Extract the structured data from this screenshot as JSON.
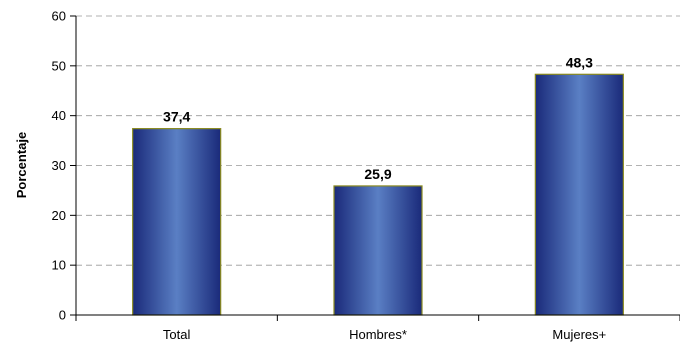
{
  "chart_data": {
    "type": "bar",
    "title": "",
    "xlabel": "",
    "ylabel": "Porcentaje",
    "ylim": [
      0,
      60
    ],
    "yticks": [
      "0",
      "10",
      "20",
      "30",
      "40",
      "50",
      "60"
    ],
    "categories": [
      "Total",
      "Hombres*",
      "Mujeres+"
    ],
    "values": [
      37.4,
      25.9,
      48.3
    ],
    "value_labels": [
      "37,4",
      "25,9",
      "48,3"
    ],
    "grid": true,
    "legend": "none",
    "colors": {
      "bar_edge": "#1a2a7a",
      "bar_center": "#5a7fc4",
      "bar_outline": "#8a8a20",
      "grid": "#999999"
    }
  }
}
